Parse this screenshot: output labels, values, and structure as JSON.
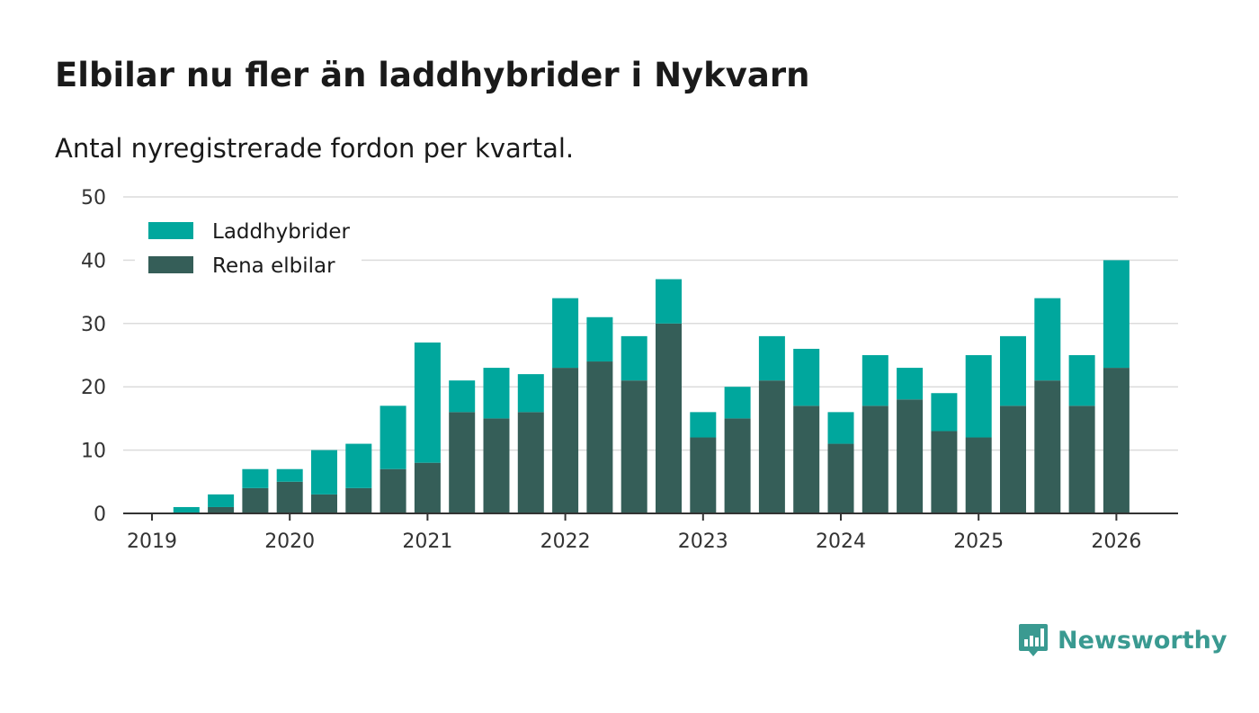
{
  "header": {
    "title": "Elbilar nu fler än laddhybrider i Nykvarn",
    "subtitle": "Antal nyregistrerade fordon per kvartal."
  },
  "brand": {
    "name": "Newsworthy",
    "icon": "newsworthy-logo-icon",
    "color": "#3a9a91"
  },
  "chart_data": {
    "type": "bar",
    "stacked": true,
    "grid": true,
    "legend_placement": "top-left",
    "xlabel": "",
    "ylabel": "",
    "ylim": [
      0,
      50
    ],
    "y_ticks": [
      0,
      10,
      20,
      30,
      40,
      50
    ],
    "x_ticks": [
      "2019",
      "2020",
      "2021",
      "2022",
      "2023",
      "2024",
      "2025",
      "2026"
    ],
    "categories": [
      "2019 Q1",
      "2019 Q2",
      "2019 Q3",
      "2019 Q4",
      "2020 Q1",
      "2020 Q2",
      "2020 Q3",
      "2020 Q4",
      "2021 Q1",
      "2021 Q2",
      "2021 Q3",
      "2021 Q4",
      "2022 Q1",
      "2022 Q2",
      "2022 Q3",
      "2022 Q4",
      "2023 Q1",
      "2023 Q2",
      "2023 Q3",
      "2023 Q4",
      "2024 Q1",
      "2024 Q2",
      "2024 Q3",
      "2024 Q4",
      "2025 Q1",
      "2025 Q2",
      "2025 Q3",
      "2025 Q4"
    ],
    "series": [
      {
        "name": "Rena elbilar",
        "color": "#355e58",
        "values": [
          0,
          1,
          4,
          5,
          3,
          4,
          7,
          8,
          16,
          15,
          16,
          23,
          24,
          21,
          30,
          12,
          15,
          21,
          17,
          11,
          17,
          18,
          13,
          12,
          17,
          21,
          17,
          23
        ]
      },
      {
        "name": "Laddhybrider",
        "color": "#00a79d",
        "values": [
          1,
          2,
          3,
          2,
          7,
          7,
          10,
          19,
          5,
          8,
          6,
          11,
          7,
          7,
          7,
          4,
          5,
          7,
          9,
          5,
          8,
          5,
          6,
          13,
          11,
          13,
          8,
          17
        ]
      }
    ],
    "legend": [
      "Laddhybrider",
      "Rena elbilar"
    ]
  }
}
